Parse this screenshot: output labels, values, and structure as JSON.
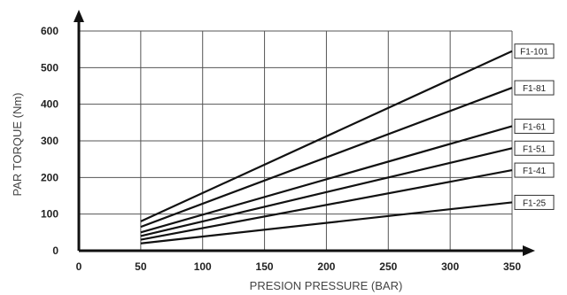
{
  "chart_data": {
    "type": "line",
    "title": "",
    "xlabel": "PRESION PRESSURE (BAR)",
    "ylabel": "PAR TORQUE (Nm)",
    "xlim": [
      0,
      350
    ],
    "ylim": [
      0,
      600
    ],
    "x_ticks": [
      0,
      50,
      100,
      150,
      200,
      250,
      300,
      350
    ],
    "y_ticks": [
      0,
      100,
      200,
      300,
      400,
      500,
      600
    ],
    "grid": true,
    "legend": "right, labels at line ends",
    "series": [
      {
        "name": "F1-101",
        "x": [
          50,
          350
        ],
        "y": [
          80,
          545
        ]
      },
      {
        "name": "F1-81",
        "x": [
          50,
          350
        ],
        "y": [
          65,
          445
        ]
      },
      {
        "name": "F1-61",
        "x": [
          50,
          350
        ],
        "y": [
          50,
          340
        ]
      },
      {
        "name": "F1-51",
        "x": [
          50,
          350
        ],
        "y": [
          40,
          280
        ]
      },
      {
        "name": "F1-41",
        "x": [
          50,
          350
        ],
        "y": [
          30,
          220
        ]
      },
      {
        "name": "F1-25",
        "x": [
          50,
          350
        ],
        "y": [
          20,
          132
        ]
      }
    ]
  }
}
